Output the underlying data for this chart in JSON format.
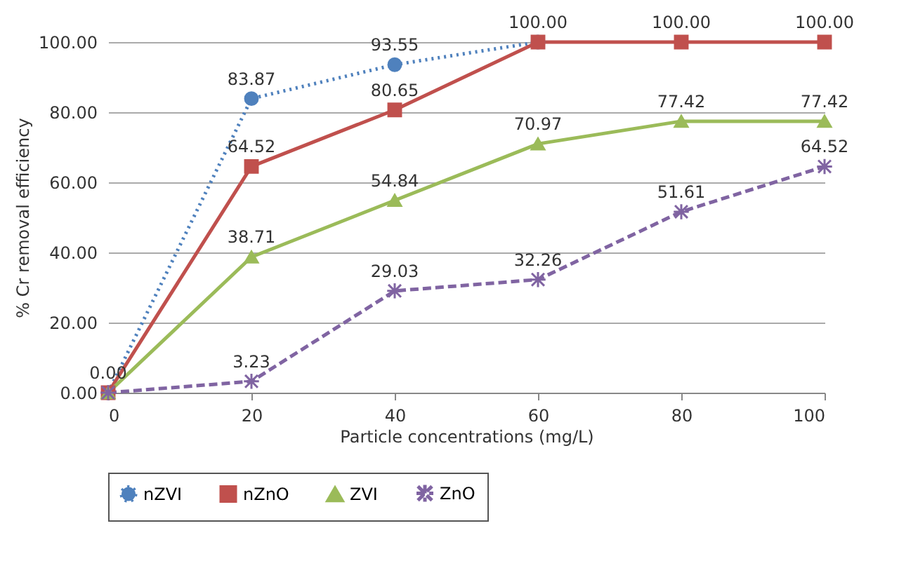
{
  "chart_data": {
    "type": "line",
    "xlabel": "Particle concentrations (mg/L)",
    "ylabel": "% Cr removal efficiency",
    "x": [
      0,
      20,
      40,
      60,
      80,
      100
    ],
    "xlim": [
      0,
      100
    ],
    "xticks": [
      0,
      20,
      40,
      60,
      80,
      100
    ],
    "ylim": [
      0,
      100
    ],
    "yticks": [
      {
        "value": 0,
        "label": "0.00"
      },
      {
        "value": 20,
        "label": "20.00"
      },
      {
        "value": 40,
        "label": "40.00"
      },
      {
        "value": 60,
        "label": "60.00"
      },
      {
        "value": 80,
        "label": "80.00"
      },
      {
        "value": 100,
        "label": "100.00"
      }
    ],
    "grid": "y",
    "legend": "bottom",
    "series": [
      {
        "name": "nZVI",
        "color": "#4f81bd",
        "marker": "circle",
        "line_style": "dotted",
        "values": [
          0,
          83.87,
          93.55,
          100,
          null,
          null
        ],
        "value_labels": [
          "0.00",
          "83.87",
          "93.55",
          null,
          null,
          null
        ]
      },
      {
        "name": "nZnO",
        "color": "#c0504d",
        "marker": "square",
        "line_style": "solid",
        "values": [
          0,
          64.52,
          80.65,
          100,
          100,
          100
        ],
        "value_labels": [
          null,
          "64.52",
          "80.65",
          "100.00",
          "100.00",
          "100.00"
        ]
      },
      {
        "name": "ZVI",
        "color": "#9bbb59",
        "marker": "triangle",
        "line_style": "solid",
        "values": [
          0,
          38.71,
          54.84,
          70.97,
          77.42,
          77.42
        ],
        "value_labels": [
          null,
          "38.71",
          "54.84",
          "70.97",
          "77.42",
          "77.42"
        ]
      },
      {
        "name": "ZnO",
        "color": "#8064a2",
        "marker": "cross",
        "line_style": "dashed",
        "values": [
          0,
          3.23,
          29.03,
          32.26,
          51.61,
          64.52
        ],
        "value_labels": [
          null,
          "3.23",
          "29.03",
          "32.26",
          "51.61",
          "64.52"
        ]
      }
    ]
  }
}
